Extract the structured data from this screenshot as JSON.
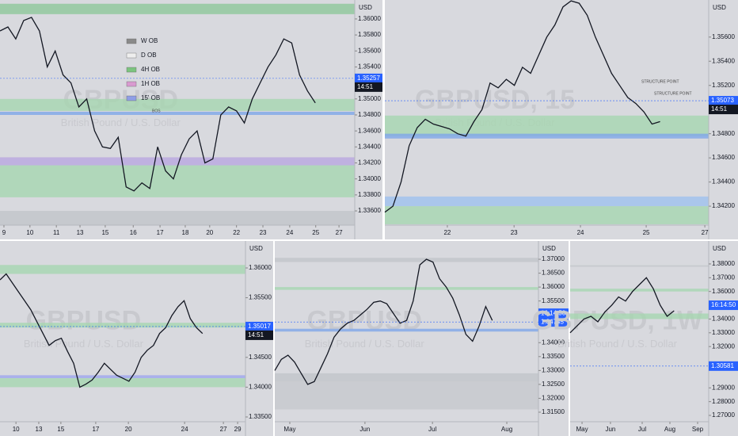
{
  "chart_data": [
    {
      "type": "line",
      "watermark": "GBPUSD",
      "subtitle": "British Pound / U.S. Dollar",
      "currency": "USD",
      "color": "#131722",
      "xlim": [
        0,
        90
      ],
      "ylim": [
        1.33422,
        1.36237
      ],
      "xticks": [
        {
          "value": 1,
          "label": "9"
        },
        {
          "value": 7.6,
          "label": "10"
        },
        {
          "value": 14.3,
          "label": "11"
        },
        {
          "value": 20.3,
          "label": "13"
        },
        {
          "value": 26.7,
          "label": "15"
        },
        {
          "value": 33.8,
          "label": "16"
        },
        {
          "value": 40.6,
          "label": "17"
        },
        {
          "value": 47,
          "label": "18"
        },
        {
          "value": 53.2,
          "label": "20"
        },
        {
          "value": 60,
          "label": "22"
        },
        {
          "value": 66.7,
          "label": "23"
        },
        {
          "value": 73.5,
          "label": "24"
        },
        {
          "value": 80.1,
          "label": "25"
        },
        {
          "value": 86,
          "label": "27"
        }
      ],
      "yticks": [
        {
          "value": 1.36,
          "label": "1.36000"
        },
        {
          "value": 1.358,
          "label": "1.35800"
        },
        {
          "value": 1.356,
          "label": "1.35600"
        },
        {
          "value": 1.354,
          "label": "1.35400"
        },
        {
          "value": 1.35,
          "label": "1.35000"
        },
        {
          "value": 1.348,
          "label": "1.34800"
        },
        {
          "value": 1.346,
          "label": "1.34600"
        },
        {
          "value": 1.344,
          "label": "1.34400"
        },
        {
          "value": 1.342,
          "label": "1.34200"
        },
        {
          "value": 1.34,
          "label": "1.34000"
        },
        {
          "value": 1.338,
          "label": "1.33800"
        },
        {
          "value": 1.336,
          "label": "1.33600"
        }
      ],
      "x": [
        0,
        2,
        4,
        6,
        8,
        10,
        12,
        14,
        16,
        18,
        20,
        22,
        24,
        26,
        28,
        30,
        32,
        34,
        36,
        38,
        40,
        42,
        44,
        46,
        48,
        50,
        52,
        54,
        56,
        58,
        60,
        62,
        64,
        66,
        68,
        70,
        72,
        74,
        76,
        78,
        80
      ],
      "values": [
        1.3585,
        1.359,
        1.3575,
        1.3598,
        1.3602,
        1.3585,
        1.354,
        1.356,
        1.353,
        1.352,
        1.349,
        1.35,
        1.346,
        1.344,
        1.3438,
        1.3452,
        1.339,
        1.3385,
        1.3395,
        1.3388,
        1.344,
        1.341,
        1.34,
        1.343,
        1.345,
        1.346,
        1.342,
        1.3425,
        1.348,
        1.349,
        1.3485,
        1.347,
        1.35,
        1.352,
        1.354,
        1.3555,
        1.3575,
        1.357,
        1.353,
        1.351,
        1.3495
      ],
      "zones": [
        {
          "low": 1.3606,
          "high": 1.3619,
          "color": "#8fc79a"
        },
        {
          "low": 1.3485,
          "high": 1.35,
          "color": "#a6d6b0"
        },
        {
          "low": 1.348,
          "high": 1.3484,
          "color": "#7fa6e8"
        },
        {
          "low": 1.3417,
          "high": 1.3427,
          "color": "#b9a6e0"
        },
        {
          "low": 1.3377,
          "high": 1.3417,
          "color": "#a6d6b0"
        },
        {
          "low": 1.3342,
          "high": 1.336,
          "color": "#c2c4c9"
        }
      ],
      "last_price": 1.35257,
      "countdown": "14:51",
      "legend": [
        {
          "name": "W OB",
          "color": "#8a8a8a"
        },
        {
          "name": "D OB",
          "color": "#eeeeee"
        },
        {
          "name": "4H OB",
          "color": "#7cc47f"
        },
        {
          "name": "1H OB",
          "color": "#d99ad0"
        },
        {
          "name": "15' OB",
          "color": "#8f9ee6"
        }
      ],
      "annotations": [
        "BOS"
      ]
    },
    {
      "type": "line",
      "watermark": "GBPUSD, 15",
      "subtitle": "British Pound / U.S. Dollar",
      "currency": "USD",
      "color": "#131722",
      "xlim": [
        0,
        100
      ],
      "ylim": [
        1.34043,
        1.35907
      ],
      "xticks": [
        {
          "value": 19.3,
          "label": "22"
        },
        {
          "value": 39.9,
          "label": "23"
        },
        {
          "value": 60.4,
          "label": "24"
        },
        {
          "value": 80.7,
          "label": "25"
        },
        {
          "value": 98.8,
          "label": "27"
        }
      ],
      "yticks": [
        {
          "value": 1.356,
          "label": "1.35600"
        },
        {
          "value": 1.354,
          "label": "1.35400"
        },
        {
          "value": 1.352,
          "label": "1.35200"
        },
        {
          "value": 1.348,
          "label": "1.34800"
        },
        {
          "value": 1.346,
          "label": "1.34600"
        },
        {
          "value": 1.344,
          "label": "1.34400"
        },
        {
          "value": 1.342,
          "label": "1.34200"
        }
      ],
      "x": [
        0,
        2.5,
        5,
        7.5,
        10,
        12.5,
        15,
        17.5,
        20,
        22.5,
        25,
        27.5,
        30,
        32.5,
        35,
        37.5,
        40,
        42.5,
        45,
        47.5,
        50,
        52.5,
        55,
        57.5,
        60,
        62.5,
        65,
        67.5,
        70,
        72.5,
        75,
        77.5,
        80,
        82.5,
        85
      ],
      "values": [
        1.3415,
        1.342,
        1.344,
        1.347,
        1.3485,
        1.3492,
        1.3488,
        1.3486,
        1.3484,
        1.348,
        1.3478,
        1.349,
        1.35,
        1.3522,
        1.3518,
        1.3525,
        1.352,
        1.3535,
        1.353,
        1.3545,
        1.356,
        1.357,
        1.3585,
        1.359,
        1.3588,
        1.3578,
        1.356,
        1.3545,
        1.353,
        1.352,
        1.351,
        1.3505,
        1.3498,
        1.3488,
        1.349
      ],
      "zones": [
        {
          "low": 1.3478,
          "high": 1.3495,
          "color": "#a6d6b0"
        },
        {
          "low": 1.3476,
          "high": 1.348,
          "color": "#7fa6e8"
        },
        {
          "low": 1.342,
          "high": 1.3428,
          "color": "#9fc0ee"
        },
        {
          "low": 1.3405,
          "high": 1.342,
          "color": "#a6d6b0"
        }
      ],
      "last_price": 1.35073,
      "countdown": "14:51",
      "annotations": [
        "STRUCTURE POINT",
        "STRUCTURE POINT"
      ]
    },
    {
      "type": "line",
      "watermark": "GBPUSD",
      "subtitle": "British Pound / U.S. Dollar",
      "currency": "USD",
      "color": "#131722",
      "xlim": [
        0,
        100
      ],
      "ylim": [
        1.3342,
        1.36452
      ],
      "xticks": [
        {
          "value": 6.5,
          "label": "10"
        },
        {
          "value": 15.8,
          "label": "13"
        },
        {
          "value": 24.8,
          "label": "15"
        },
        {
          "value": 39,
          "label": "17"
        },
        {
          "value": 52.3,
          "label": "20"
        },
        {
          "value": 75.2,
          "label": "24"
        },
        {
          "value": 91,
          "label": "27"
        },
        {
          "value": 96.8,
          "label": "29"
        }
      ],
      "yticks": [
        {
          "value": 1.36,
          "label": "1.36000"
        },
        {
          "value": 1.355,
          "label": "1.35500"
        },
        {
          "value": 1.345,
          "label": "1.34500"
        },
        {
          "value": 1.34,
          "label": "1.34000"
        },
        {
          "value": 1.335,
          "label": "1.33500"
        }
      ],
      "x": [
        0,
        2.5,
        5,
        7.5,
        10,
        12.5,
        15,
        17.5,
        20,
        22.5,
        25,
        27.5,
        30,
        32.5,
        35,
        37.5,
        40,
        42.5,
        45,
        47.5,
        50,
        52.5,
        55,
        57.5,
        60,
        62.5,
        65,
        67.5,
        70,
        72.5,
        75,
        77.5,
        80,
        82.5
      ],
      "values": [
        1.358,
        1.359,
        1.3575,
        1.356,
        1.3545,
        1.353,
        1.351,
        1.349,
        1.347,
        1.3478,
        1.3482,
        1.346,
        1.344,
        1.34,
        1.3405,
        1.3412,
        1.3425,
        1.344,
        1.343,
        1.342,
        1.3415,
        1.341,
        1.3425,
        1.345,
        1.3462,
        1.347,
        1.349,
        1.35,
        1.352,
        1.3535,
        1.3545,
        1.3515,
        1.35,
        1.349
      ],
      "zones": [
        {
          "low": 1.359,
          "high": 1.3605,
          "color": "#a6d6b0"
        },
        {
          "low": 1.35,
          "high": 1.3508,
          "color": "#a6d6b0"
        },
        {
          "low": 1.3415,
          "high": 1.342,
          "color": "#9fa6ee"
        },
        {
          "low": 1.34,
          "high": 1.3415,
          "color": "#a6d6b0"
        }
      ],
      "last_price": 1.35017,
      "countdown": "14:51"
    },
    {
      "type": "line",
      "watermark": "GBPUSD",
      "subtitle": "British Pound / U.S. Dollar",
      "currency": "USD",
      "color": "#131722",
      "xlim": [
        0,
        100
      ],
      "ylim": [
        1.31157,
        1.37657
      ],
      "xticks": [
        {
          "value": 5.7,
          "label": "May"
        },
        {
          "value": 34.2,
          "label": "Jun"
        },
        {
          "value": 59.8,
          "label": "Jul"
        },
        {
          "value": 88,
          "label": "Aug"
        }
      ],
      "yticks": [
        {
          "value": 1.37,
          "label": "1.37000"
        },
        {
          "value": 1.365,
          "label": "1.36500"
        },
        {
          "value": 1.36,
          "label": "1.36000"
        },
        {
          "value": 1.355,
          "label": "1.35500"
        },
        {
          "value": 1.35,
          "label": "1.35000"
        },
        {
          "value": 1.34,
          "label": "1.34000"
        },
        {
          "value": 1.335,
          "label": "1.33500"
        },
        {
          "value": 1.33,
          "label": "1.33000"
        },
        {
          "value": 1.325,
          "label": "1.32500"
        },
        {
          "value": 1.32,
          "label": "1.32000"
        },
        {
          "value": 1.315,
          "label": "1.31500"
        }
      ],
      "x": [
        0,
        2.5,
        5,
        7.5,
        10,
        12.5,
        15,
        17.5,
        20,
        22.5,
        25,
        27.5,
        30,
        32.5,
        35,
        37.5,
        40,
        42.5,
        45,
        47.5,
        50,
        52.5,
        55,
        57.5,
        60,
        62.5,
        65,
        67.5,
        70,
        72.5,
        75,
        77.5,
        80,
        82.5
      ],
      "values": [
        1.33,
        1.334,
        1.3355,
        1.333,
        1.329,
        1.325,
        1.326,
        1.331,
        1.336,
        1.342,
        1.345,
        1.347,
        1.348,
        1.35,
        1.352,
        1.3545,
        1.355,
        1.354,
        1.3505,
        1.347,
        1.348,
        1.355,
        1.368,
        1.37,
        1.369,
        1.363,
        1.36,
        1.356,
        1.35,
        1.343,
        1.3405,
        1.346,
        1.353,
        1.348
      ],
      "zones": [
        {
          "low": 1.369,
          "high": 1.3705,
          "color": "#c2c4c9"
        },
        {
          "low": 1.359,
          "high": 1.36,
          "color": "#a6d6b0"
        },
        {
          "low": 1.344,
          "high": 1.345,
          "color": "#7fa6e8"
        },
        {
          "low": 1.326,
          "high": 1.329,
          "color": "#c2c4c9"
        },
        {
          "low": 1.316,
          "high": 1.326,
          "color": "#c7c8cd"
        }
      ],
      "last_price": 1.34745,
      "countdown": "16:14:50"
    },
    {
      "type": "line",
      "watermark": "GBPUSD, 1W",
      "subtitle": "British Pound / U.S. Dollar",
      "currency": "USD",
      "color": "#131722",
      "xlim": [
        0,
        100
      ],
      "ylim": [
        1.2654,
        1.39667
      ],
      "xticks": [
        {
          "value": 8.6,
          "label": "May"
        },
        {
          "value": 29.1,
          "label": "Jun"
        },
        {
          "value": 52,
          "label": "Jul"
        },
        {
          "value": 72,
          "label": "Aug"
        },
        {
          "value": 92,
          "label": "Sep"
        }
      ],
      "yticks": [
        {
          "value": 1.38,
          "label": "1.38000"
        },
        {
          "value": 1.37,
          "label": "1.37000"
        },
        {
          "value": 1.36,
          "label": "1.36000"
        },
        {
          "value": 1.34,
          "label": "1.34000"
        },
        {
          "value": 1.33,
          "label": "1.33000"
        },
        {
          "value": 1.32,
          "label": "1.32000"
        },
        {
          "value": 1.29,
          "label": "1.29000"
        },
        {
          "value": 1.28,
          "label": "1.28000"
        },
        {
          "value": 1.27,
          "label": "1.27000"
        }
      ],
      "x": [
        0,
        5,
        10,
        15,
        20,
        25,
        30,
        35,
        40,
        45,
        50,
        55,
        60,
        65,
        70,
        75
      ],
      "values": [
        1.33,
        1.335,
        1.34,
        1.342,
        1.338,
        1.345,
        1.35,
        1.356,
        1.353,
        1.36,
        1.365,
        1.37,
        1.362,
        1.35,
        1.342,
        1.346
      ],
      "zones": [
        {
          "low": 1.378,
          "high": 1.379,
          "color": "#c2c4c9"
        },
        {
          "low": 1.36,
          "high": 1.362,
          "color": "#a6d6b0"
        },
        {
          "low": 1.34,
          "high": 1.344,
          "color": "#a6d6b0"
        }
      ],
      "last_price": 1.30581,
      "countdown": "16:14:50"
    }
  ]
}
